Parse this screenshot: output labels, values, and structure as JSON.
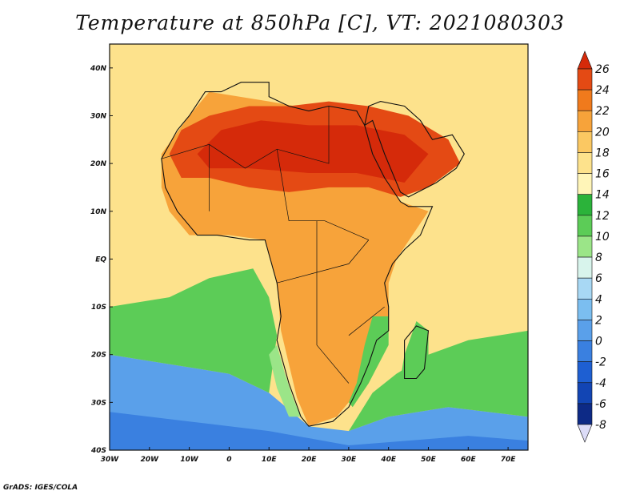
{
  "title": "Temperature at 850hPa [C], VT: 2021080303",
  "credit": "GrADS: IGES/COLA",
  "map": {
    "lon_min": -30,
    "lon_max": 75,
    "lat_min": -40,
    "lat_max": 45,
    "lon_ticks": [
      {
        "value": -30,
        "label": "30W"
      },
      {
        "value": -20,
        "label": "20W"
      },
      {
        "value": -10,
        "label": "10W"
      },
      {
        "value": 0,
        "label": "0"
      },
      {
        "value": 10,
        "label": "10E"
      },
      {
        "value": 20,
        "label": "20E"
      },
      {
        "value": 30,
        "label": "30E"
      },
      {
        "value": 40,
        "label": "40E"
      },
      {
        "value": 50,
        "label": "50E"
      },
      {
        "value": 60,
        "label": "60E"
      },
      {
        "value": 70,
        "label": "70E"
      }
    ],
    "lat_ticks": [
      {
        "value": 40,
        "label": "40N"
      },
      {
        "value": 30,
        "label": "30N"
      },
      {
        "value": 20,
        "label": "20N"
      },
      {
        "value": 10,
        "label": "10N"
      },
      {
        "value": 0,
        "label": "EQ"
      },
      {
        "value": -10,
        "label": "10S"
      },
      {
        "value": -20,
        "label": "20S"
      },
      {
        "value": -30,
        "label": "30S"
      },
      {
        "value": -40,
        "label": "40S"
      }
    ],
    "ocean_color": "#fde28c",
    "land_outline": "#111111"
  },
  "colorbar": {
    "labels": [
      "26",
      "24",
      "22",
      "20",
      "18",
      "16",
      "14",
      "12",
      "10",
      "8",
      "6",
      "4",
      "2",
      "0",
      "-2",
      "-4",
      "-6",
      "-8"
    ],
    "colors": [
      "#d52a0a",
      "#e44a14",
      "#f07a1c",
      "#f7a33a",
      "#fbc862",
      "#fde28c",
      "#fff5b8",
      "#2bb33a",
      "#5ccc57",
      "#9be588",
      "#d8f4ec",
      "#a8d8f4",
      "#7bbef0",
      "#5aa0ea",
      "#3a80e0",
      "#1e5fd2",
      "#1245b4",
      "#0d2a86",
      "#dcdcf8"
    ]
  },
  "temperature_regions": [
    {
      "name": "southern-ocean-cold",
      "color": "#5aa0ea",
      "points": [
        [
          -30,
          -40
        ],
        [
          75,
          -40
        ],
        [
          75,
          -33
        ],
        [
          55,
          -31
        ],
        [
          40,
          -33
        ],
        [
          30,
          -36
        ],
        [
          20,
          -35
        ],
        [
          10,
          -28
        ],
        [
          0,
          -24
        ],
        [
          -15,
          -22
        ],
        [
          -30,
          -20
        ]
      ]
    },
    {
      "name": "southern-ocean-deep",
      "color": "#3a80e0",
      "points": [
        [
          -30,
          -40
        ],
        [
          75,
          -40
        ],
        [
          75,
          -38
        ],
        [
          60,
          -37
        ],
        [
          45,
          -38
        ],
        [
          30,
          -39
        ],
        [
          10,
          -36
        ],
        [
          -10,
          -34
        ],
        [
          -30,
          -32
        ]
      ]
    },
    {
      "name": "atlantic-green",
      "color": "#5ccc57",
      "points": [
        [
          -30,
          -20
        ],
        [
          -15,
          -22
        ],
        [
          0,
          -24
        ],
        [
          10,
          -28
        ],
        [
          12,
          -16
        ],
        [
          10,
          -8
        ],
        [
          6,
          -2
        ],
        [
          -5,
          -4
        ],
        [
          -15,
          -8
        ],
        [
          -30,
          -10
        ]
      ]
    },
    {
      "name": "indian-green",
      "color": "#5ccc57",
      "points": [
        [
          30,
          -36
        ],
        [
          40,
          -33
        ],
        [
          55,
          -31
        ],
        [
          75,
          -33
        ],
        [
          75,
          -15
        ],
        [
          60,
          -17
        ],
        [
          50,
          -20
        ],
        [
          42,
          -24
        ],
        [
          36,
          -28
        ]
      ]
    },
    {
      "name": "africa-warm",
      "color": "#f7a33a",
      "points": [
        [
          -17,
          15
        ],
        [
          -15,
          10
        ],
        [
          -10,
          5
        ],
        [
          0,
          5
        ],
        [
          9,
          4
        ],
        [
          12,
          -5
        ],
        [
          13,
          -15
        ],
        [
          17,
          -29
        ],
        [
          20,
          -35
        ],
        [
          27,
          -33
        ],
        [
          32,
          -28
        ],
        [
          35,
          -20
        ],
        [
          40,
          -15
        ],
        [
          40,
          -5
        ],
        [
          42,
          0
        ],
        [
          50,
          10
        ],
        [
          43,
          12
        ],
        [
          36,
          20
        ],
        [
          30,
          30
        ],
        [
          10,
          33
        ],
        [
          -5,
          35
        ],
        [
          -10,
          30
        ],
        [
          -17,
          22
        ]
      ]
    },
    {
      "name": "sahara-hot",
      "color": "#e44a14",
      "points": [
        [
          -15,
          22
        ],
        [
          -12,
          27
        ],
        [
          -5,
          30
        ],
        [
          5,
          32
        ],
        [
          15,
          32
        ],
        [
          25,
          33
        ],
        [
          35,
          32
        ],
        [
          45,
          30
        ],
        [
          55,
          25
        ],
        [
          58,
          20
        ],
        [
          50,
          15
        ],
        [
          43,
          13
        ],
        [
          35,
          15
        ],
        [
          25,
          15
        ],
        [
          15,
          14
        ],
        [
          5,
          15
        ],
        [
          -5,
          17
        ],
        [
          -12,
          17
        ]
      ]
    },
    {
      "name": "sahara-core",
      "color": "#d52a0a",
      "points": [
        [
          -8,
          22
        ],
        [
          -2,
          27
        ],
        [
          8,
          29
        ],
        [
          20,
          28
        ],
        [
          32,
          28
        ],
        [
          44,
          26
        ],
        [
          50,
          22
        ],
        [
          44,
          16
        ],
        [
          32,
          18
        ],
        [
          20,
          18
        ],
        [
          5,
          19
        ],
        [
          -5,
          19
        ]
      ]
    },
    {
      "name": "madagascar-green",
      "color": "#5ccc57",
      "points": [
        [
          43,
          -25
        ],
        [
          44,
          -20
        ],
        [
          47,
          -13
        ],
        [
          50,
          -15
        ],
        [
          50,
          -22
        ],
        [
          47,
          -25
        ]
      ]
    },
    {
      "name": "se-africa-green",
      "color": "#5ccc57",
      "points": [
        [
          30,
          -30
        ],
        [
          32,
          -26
        ],
        [
          34,
          -18
        ],
        [
          36,
          -12
        ],
        [
          40,
          -12
        ],
        [
          40,
          -18
        ],
        [
          35,
          -26
        ],
        [
          31,
          -31
        ]
      ]
    },
    {
      "name": "sw-coast-cold",
      "color": "#9be588",
      "points": [
        [
          12,
          -18
        ],
        [
          14,
          -24
        ],
        [
          16,
          -29
        ],
        [
          18,
          -33
        ],
        [
          15,
          -33
        ],
        [
          12,
          -27
        ],
        [
          10,
          -20
        ]
      ]
    }
  ]
}
